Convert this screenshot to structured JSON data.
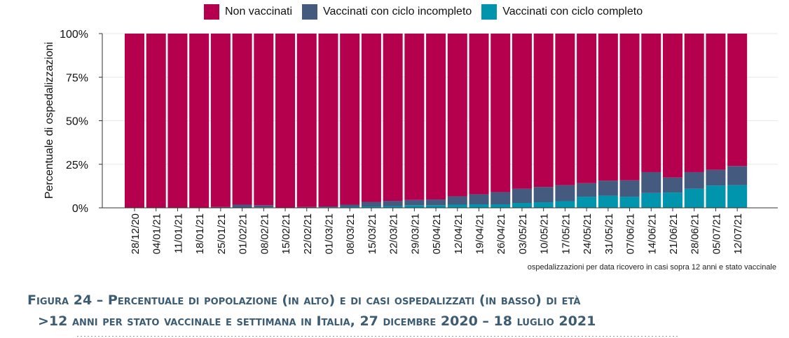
{
  "legend": {
    "items": [
      {
        "label": "Non vaccinati",
        "color": "#b5004d"
      },
      {
        "label": "Vaccinati con ciclo incompleto",
        "color": "#455a7f"
      },
      {
        "label": "Vaccinati con ciclo completo",
        "color": "#0094ad"
      }
    ]
  },
  "chart_data": {
    "type": "bar",
    "stacked": true,
    "ylabel": "Percentuale di ospedalizzazioni",
    "xlabel": "",
    "ylim": [
      0,
      100
    ],
    "yticks": [
      "0%",
      "25%",
      "50%",
      "75%",
      "100%"
    ],
    "grid": true,
    "legend_position": "top",
    "categories": [
      "28/12/20",
      "04/01/21",
      "11/01/21",
      "18/01/21",
      "25/01/21",
      "01/02/21",
      "08/02/21",
      "15/02/21",
      "22/02/21",
      "01/03/21",
      "08/03/21",
      "15/03/21",
      "22/03/21",
      "29/03/21",
      "05/04/21",
      "12/04/21",
      "19/04/21",
      "26/04/21",
      "03/05/21",
      "10/05/21",
      "17/05/21",
      "24/05/21",
      "31/05/21",
      "07/06/21",
      "14/06/21",
      "21/06/21",
      "28/06/21",
      "05/07/21",
      "12/07/21"
    ],
    "series": [
      {
        "name": "Vaccinati con ciclo completo",
        "values": [
          0,
          0,
          0,
          0,
          0,
          0,
          0.3,
          0,
          0,
          0.3,
          0.6,
          0.8,
          1.0,
          1.5,
          1.5,
          1.8,
          2.0,
          2.0,
          2.8,
          3.2,
          3.8,
          6.4,
          7.0,
          6.4,
          8.5,
          8.8,
          11.0,
          12.8,
          13.0
        ]
      },
      {
        "name": "Vaccinati con ciclo incompleto",
        "values": [
          0,
          0,
          0,
          0,
          0.5,
          1.8,
          1.2,
          0.2,
          0.5,
          0.5,
          1.2,
          2.6,
          3.0,
          3.0,
          3.3,
          4.8,
          5.8,
          7.0,
          8.2,
          8.8,
          9.2,
          7.8,
          8.6,
          9.4,
          12.0,
          8.6,
          9.5,
          9.0,
          11.0
        ]
      },
      {
        "name": "Non vaccinati",
        "values": [
          100,
          100,
          100,
          100,
          99.5,
          98.2,
          98.5,
          99.8,
          99.5,
          99.2,
          98.2,
          96.6,
          96.0,
          95.5,
          95.2,
          93.4,
          92.2,
          91.0,
          89.0,
          88.0,
          87.0,
          85.8,
          84.4,
          84.2,
          79.5,
          82.6,
          79.5,
          78.2,
          76.0
        ]
      }
    ],
    "note": "ospedalizzazioni per data ricovero in casi sopra 12 anni  e stato vaccinale"
  },
  "caption": {
    "line1": "Figura 24 – Percentuale di popolazione (in alto) e di casi ospedalizzati (in basso) di età",
    "line2": ">12 anni per stato vaccinale e settimana in Italia, 27 dicembre 2020 – 18 luglio 2021"
  }
}
